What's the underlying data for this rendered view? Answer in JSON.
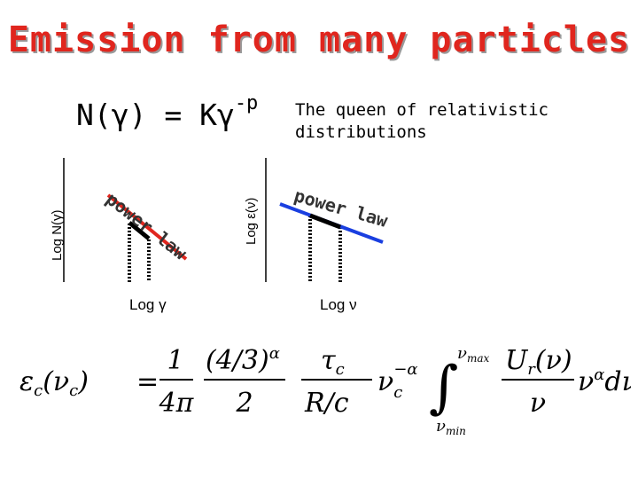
{
  "title": "Emission from many particles",
  "formula": {
    "base": "N(γ) = Kγ",
    "exponent": "-p"
  },
  "description": "The queen of relativistic distributions",
  "left_plot": {
    "y_label": "Log N(γ)",
    "x_label": "Log γ",
    "curve_label": "power law",
    "line_color": "#e0261e"
  },
  "right_plot": {
    "y_label": "Log ε(ν)",
    "x_label": "Log ν",
    "curve_label": "power law",
    "line_color": "#1a3fe0"
  },
  "equation": {
    "lhs": "εc(νc)",
    "eq": "=",
    "f1_num": "1",
    "f1_den": "4π",
    "f2_num": "(4/3)^α",
    "f2_den": "2",
    "f3_num": "τc",
    "f3_den": "R/c",
    "nu_term": "νc^−α",
    "int_upper": "νmax",
    "int_lower": "νmin",
    "f4_num": "Ur(ν)",
    "f4_den": "ν",
    "tail": "ν^α dν"
  }
}
